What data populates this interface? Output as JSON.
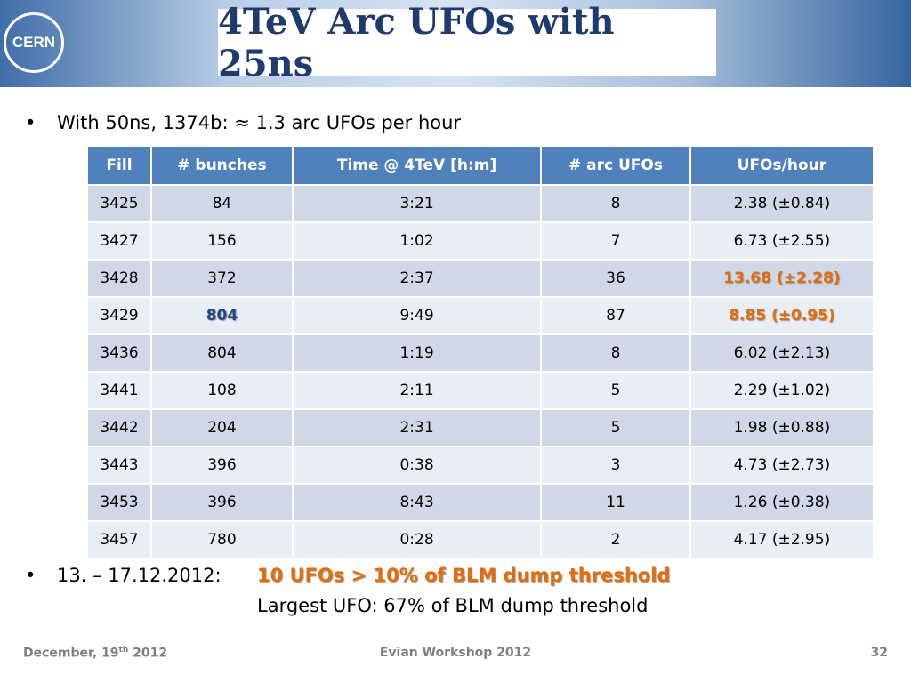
{
  "header": {
    "title": "4TeV Arc UFOs with 25ns",
    "logo": "CERN"
  },
  "bullets": [
    {
      "text": "With 50ns, 1374b: ≈ 1.3 arc UFOs per hour"
    },
    {
      "date": "13. – 17.12.2012:",
      "highlight": "10 UFOs > 10% of BLM dump threshold",
      "line2": "Largest UFO: 67% of BLM dump threshold"
    }
  ],
  "table": {
    "columns": [
      "Fill",
      "# bunches",
      "Time @ 4TeV [h:m]",
      "# arc UFOs",
      "UFOs/hour"
    ],
    "rows": [
      [
        "3425",
        "84",
        "3:21",
        "8",
        "2.38 (±0.84)"
      ],
      [
        "3427",
        "156",
        "1:02",
        "7",
        "6.73 (±2.55)"
      ],
      [
        "3428",
        "372",
        "2:37",
        "36",
        "13.68 (±2.28)"
      ],
      [
        "3429",
        "804",
        "9:49",
        "87",
        "8.85 (±0.95)"
      ],
      [
        "3436",
        "804",
        "1:19",
        "8",
        "6.02 (±2.13)"
      ],
      [
        "3441",
        "108",
        "2:11",
        "5",
        "2.29 (±1.02)"
      ],
      [
        "3442",
        "204",
        "2:31",
        "5",
        "1.98 (±0.88)"
      ],
      [
        "3443",
        "396",
        "0:38",
        "3",
        "4.73 (±2.73)"
      ],
      [
        "3453",
        "396",
        "8:43",
        "11",
        "1.26 (±0.38)"
      ],
      [
        "3457",
        "780",
        "0:28",
        "2",
        "4.17 (±2.95)"
      ]
    ]
  },
  "footer": {
    "date": "December, 19",
    "date_sup": "th",
    "year": "2012",
    "event": "Evian Workshop 2012",
    "page": "32"
  }
}
